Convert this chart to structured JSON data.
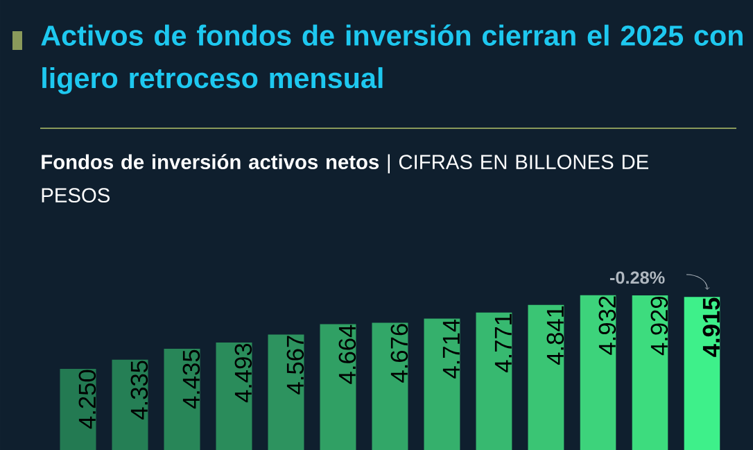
{
  "chart_data": {
    "type": "bar",
    "title": "Activos de fondos de inversión cierran el 2025 con ligero retroceso mensual",
    "subtitle": "**Fondos de inversión activos netos** | CIFRAS EN BILLONES DE PESOS",
    "categories": [
      null,
      null,
      null,
      null,
      null,
      null,
      null,
      null,
      null,
      null,
      null,
      null,
      null
    ],
    "values": [
      4.25,
      4.335,
      4.435,
      4.493,
      4.567,
      4.664,
      4.676,
      4.714,
      4.771,
      4.841,
      4.932,
      4.929,
      4.915
    ],
    "colors": [
      "#237a52",
      "#257f55",
      "#288658",
      "#2a8c5b",
      "#2d935f",
      "#30a064",
      "#32a768",
      "#35b06c",
      "#37b970",
      "#3ac574",
      "#3dd37b",
      "#3ddc7e",
      "#3ef08a"
    ],
    "value_labels": [
      "4.250",
      "4.335",
      "4.435",
      "4.493",
      "4.567",
      "4.664",
      "4.676",
      "4.714",
      "4.771",
      "4.841",
      "4.932",
      "4.929",
      "4.915"
    ],
    "annotations": [
      "-0.28%"
    ]
  }
}
